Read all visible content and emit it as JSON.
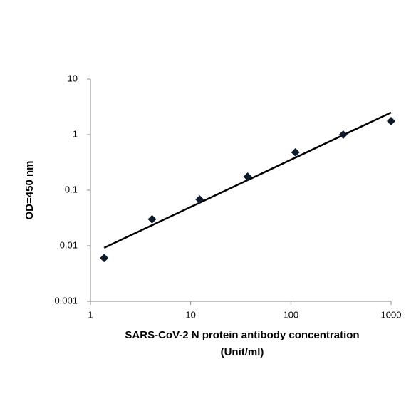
{
  "chart_data": {
    "type": "scatter",
    "x_label": [
      "SARS-CoV-2 N protein antibody concentration",
      "(Unit/ml)"
    ],
    "y_label": "OD=450 nm",
    "x": [
      1.37,
      4.12,
      12.3,
      37,
      111,
      333,
      1000
    ],
    "values": [
      0.006,
      0.03,
      0.068,
      0.175,
      0.48,
      1.0,
      1.75
    ],
    "color": "#0d1b2a",
    "trendline": {
      "x": [
        1.37,
        1000
      ],
      "values": [
        0.0092,
        2.5
      ],
      "color": "#000000"
    },
    "xscale": "log",
    "yscale": "log",
    "xlim": [
      1,
      1000
    ],
    "ylim": [
      0.001,
      10
    ],
    "xticks": [
      1,
      10,
      100,
      1000
    ],
    "yticks": [
      0.001,
      0.01,
      0.1,
      1,
      10
    ],
    "grid": false
  }
}
